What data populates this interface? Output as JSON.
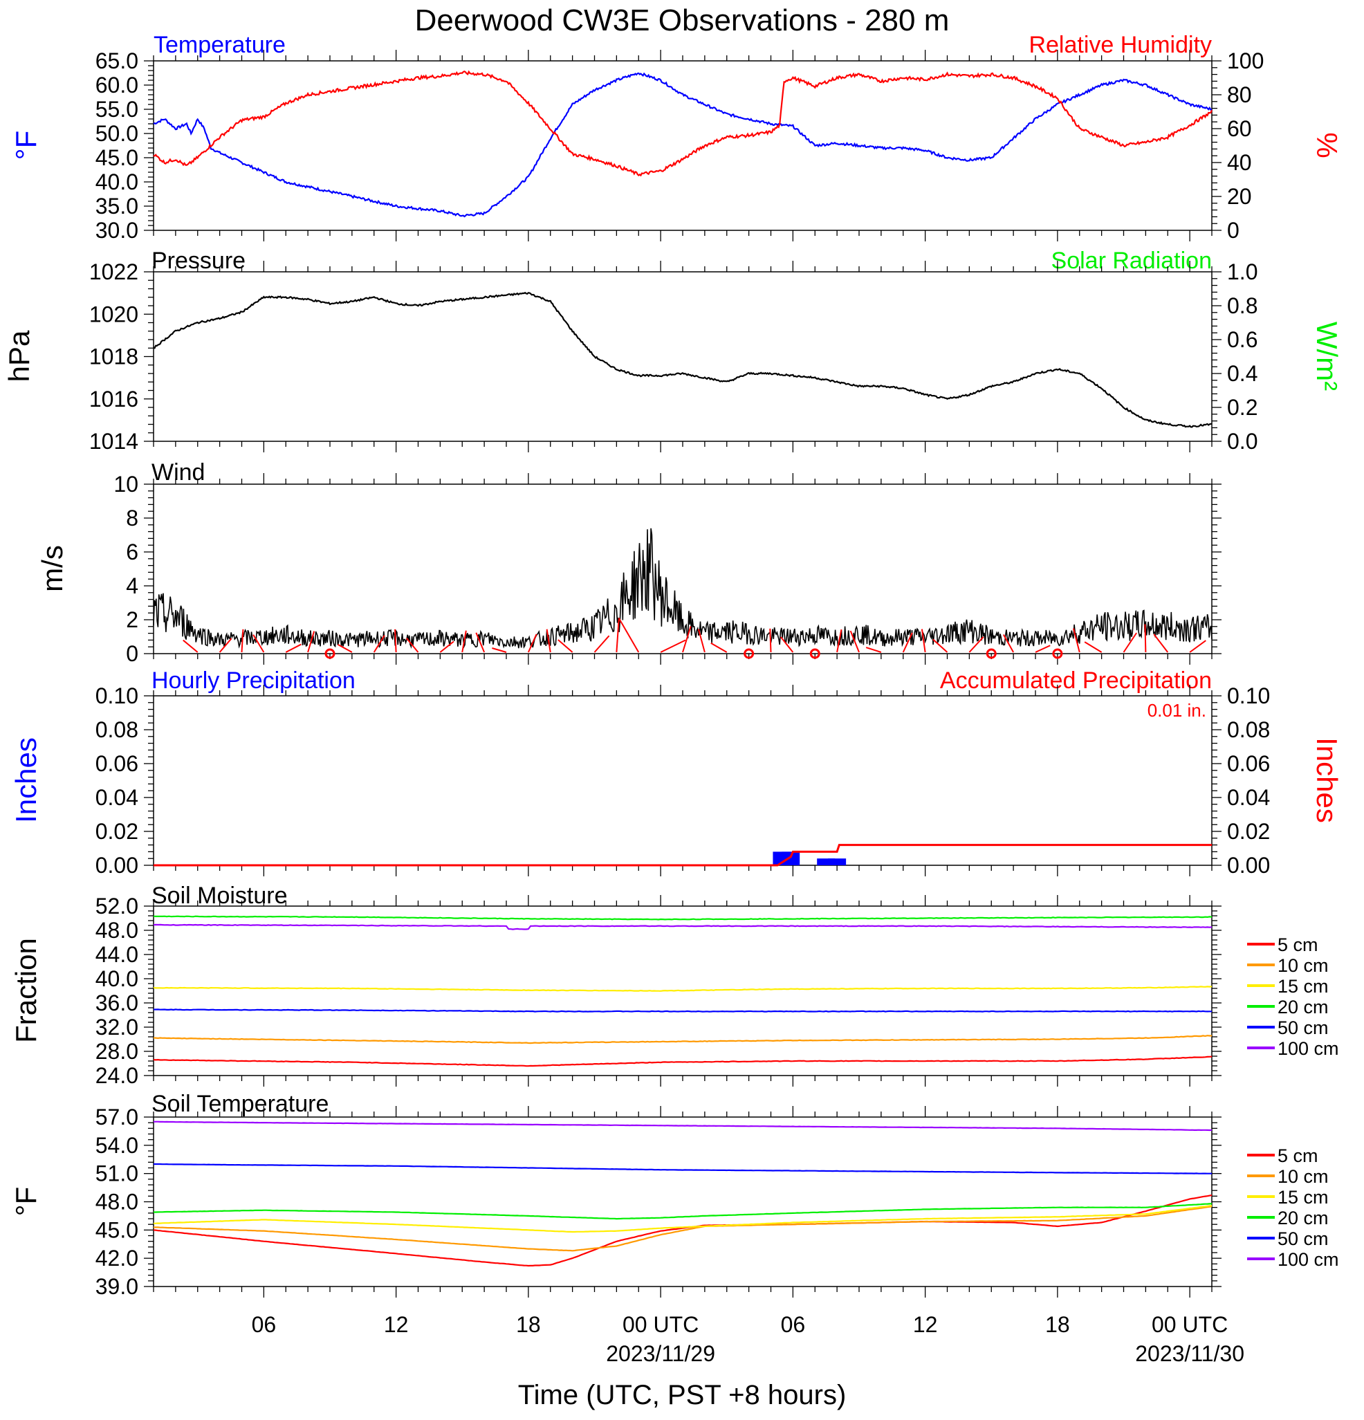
{
  "title": "Deerwood CW3E Observations - 280 m",
  "xaxis": {
    "title": "Time (UTC, PST +8 hours)",
    "ticks": [
      {
        "h": 6,
        "label": "06",
        "sub": ""
      },
      {
        "h": 12,
        "label": "12",
        "sub": ""
      },
      {
        "h": 18,
        "label": "18",
        "sub": ""
      },
      {
        "h": 24,
        "label": "00 UTC",
        "sub": "2023/11/29"
      },
      {
        "h": 30,
        "label": "06",
        "sub": ""
      },
      {
        "h": 36,
        "label": "12",
        "sub": ""
      },
      {
        "h": 42,
        "label": "18",
        "sub": ""
      },
      {
        "h": 48,
        "label": "00 UTC",
        "sub": "2023/11/30"
      }
    ],
    "range_hours": [
      1,
      49
    ]
  },
  "colors": {
    "temperature": "#0000ff",
    "humidity": "#ff0000",
    "solar": "#00ee00",
    "pressure": "#000000",
    "wind_barb": "#ff0000",
    "hourly_precip": "#0000ff",
    "accum_precip": "#ff0000"
  },
  "panels": {
    "temp_rh": {
      "left_label": "Temperature",
      "right_label": "Relative Humidity",
      "left_unit": "°F",
      "right_unit": "%",
      "left_ticks": [
        "65.0",
        "60.0",
        "55.0",
        "50.0",
        "45.0",
        "40.0",
        "35.0",
        "30.0"
      ],
      "right_ticks": [
        "100",
        "80",
        "60",
        "40",
        "20",
        "0"
      ]
    },
    "pressure": {
      "left_label": "Pressure",
      "right_label": "Solar Radiation",
      "left_unit": "hPa",
      "right_unit": "W/m²",
      "left_ticks": [
        "1022",
        "1020",
        "1018",
        "1016",
        "1014"
      ],
      "right_ticks": [
        "1.0",
        "0.8",
        "0.6",
        "0.4",
        "0.2",
        "0.0"
      ]
    },
    "wind": {
      "left_label": "Wind",
      "left_unit": "m/s",
      "left_ticks": [
        "10",
        "8",
        "6",
        "4",
        "2",
        "0"
      ]
    },
    "precip": {
      "left_label": "Hourly Precipitation",
      "right_label": "Accumulated Precipitation",
      "total_note": "0.01 in.",
      "left_unit": "Inches",
      "right_unit": "Inches",
      "left_ticks": [
        "0.10",
        "0.08",
        "0.06",
        "0.04",
        "0.02",
        "0.00"
      ],
      "right_ticks": [
        "0.10",
        "0.08",
        "0.06",
        "0.04",
        "0.02",
        "0.00"
      ]
    },
    "soil_moisture": {
      "left_label": "Soil Moisture",
      "left_unit": "Fraction",
      "left_ticks": [
        "52.0",
        "48.0",
        "44.0",
        "40.0",
        "36.0",
        "32.0",
        "28.0",
        "24.0"
      ],
      "legend": [
        {
          "label": "5 cm",
          "color": "#ff0000"
        },
        {
          "label": "10 cm",
          "color": "#ff9900"
        },
        {
          "label": "15 cm",
          "color": "#ffee00"
        },
        {
          "label": "20 cm",
          "color": "#00ee00"
        },
        {
          "label": "50 cm",
          "color": "#0000ff"
        },
        {
          "label": "100 cm",
          "color": "#9900ff"
        }
      ]
    },
    "soil_temp": {
      "left_label": "Soil Temperature",
      "left_unit": "°F",
      "left_ticks": [
        "57.0",
        "54.0",
        "51.0",
        "48.0",
        "45.0",
        "42.0",
        "39.0"
      ],
      "legend": [
        {
          "label": "5 cm",
          "color": "#ff0000"
        },
        {
          "label": "10 cm",
          "color": "#ff9900"
        },
        {
          "label": "15 cm",
          "color": "#ffee00"
        },
        {
          "label": "20 cm",
          "color": "#00ee00"
        },
        {
          "label": "50 cm",
          "color": "#0000ff"
        },
        {
          "label": "100 cm",
          "color": "#9900ff"
        }
      ]
    }
  },
  "chart_data": [
    {
      "type": "line",
      "title": "Temperature / Relative Humidity",
      "ylim": [
        30,
        65
      ],
      "y2lim": [
        0,
        100
      ],
      "series": [
        {
          "name": "Temperature",
          "axis": "left",
          "x": [
            1,
            1.5,
            2,
            2.5,
            2.7,
            3,
            3.3,
            3.6,
            4,
            5,
            6,
            7,
            8,
            9,
            10,
            11,
            12,
            13,
            14,
            15,
            16,
            17,
            18,
            19,
            20,
            21,
            22,
            23,
            24,
            25,
            26,
            27,
            28,
            29,
            30,
            31,
            32,
            33,
            34,
            35,
            36,
            37,
            38,
            39,
            40,
            41,
            42,
            43,
            44,
            45,
            46,
            47,
            48,
            49
          ],
          "y": [
            52,
            53,
            51,
            52,
            50,
            53,
            51,
            47,
            46,
            44,
            42,
            40,
            39,
            38,
            37,
            36,
            35,
            34.5,
            34,
            33,
            33.5,
            37,
            41,
            49,
            56,
            59,
            61,
            62.5,
            61,
            58,
            56,
            54,
            53,
            52,
            51.5,
            47.5,
            48,
            47.5,
            47,
            47,
            46.5,
            45,
            44.5,
            45,
            49,
            53,
            56,
            58,
            60,
            61,
            60,
            58,
            56,
            55
          ]
        },
        {
          "name": "Relative Humidity",
          "axis": "right",
          "x": [
            1,
            1.5,
            2,
            2.5,
            3,
            4,
            5,
            6,
            7,
            8,
            9,
            10,
            11,
            12,
            13,
            14,
            15,
            16,
            17,
            18,
            19,
            20,
            21,
            22,
            23,
            24,
            25,
            26,
            27,
            28,
            29,
            29.4,
            29.6,
            30,
            31,
            32,
            33,
            34,
            35,
            36,
            37,
            38,
            39,
            40,
            41,
            42,
            43,
            44,
            45,
            46,
            47,
            48,
            49
          ],
          "y": [
            45,
            40,
            42,
            38,
            43,
            55,
            65,
            67,
            75,
            80,
            82,
            84,
            86,
            88,
            90,
            91,
            93,
            92,
            88,
            75,
            60,
            45,
            42,
            38,
            33,
            35,
            42,
            50,
            55,
            56,
            58,
            62,
            88,
            90,
            85,
            90,
            92,
            88,
            90,
            89,
            92,
            91,
            92,
            90,
            85,
            78,
            60,
            55,
            50,
            52,
            55,
            62,
            70
          ]
        }
      ]
    },
    {
      "type": "line",
      "title": "Pressure",
      "ylim": [
        1014,
        1022
      ],
      "series": [
        {
          "name": "Pressure",
          "x": [
            1,
            2,
            3,
            4,
            5,
            6,
            7,
            8,
            9,
            10,
            11,
            12,
            13,
            14,
            15,
            16,
            17,
            18,
            19,
            20,
            21,
            22,
            23,
            24,
            25,
            26,
            27,
            28,
            29,
            30,
            31,
            32,
            33,
            34,
            35,
            36,
            37,
            38,
            39,
            40,
            41,
            42,
            43,
            44,
            45,
            46,
            47,
            48,
            49
          ],
          "y": [
            1018.4,
            1019.2,
            1019.6,
            1019.8,
            1020.1,
            1020.8,
            1020.8,
            1020.7,
            1020.5,
            1020.6,
            1020.8,
            1020.5,
            1020.4,
            1020.6,
            1020.7,
            1020.8,
            1020.9,
            1021,
            1020.6,
            1019.2,
            1018.0,
            1017.4,
            1017.1,
            1017.1,
            1017.2,
            1017.0,
            1016.8,
            1017.2,
            1017.2,
            1017.1,
            1017.0,
            1016.8,
            1016.6,
            1016.6,
            1016.5,
            1016.2,
            1016.0,
            1016.2,
            1016.6,
            1016.8,
            1017.2,
            1017.4,
            1017.2,
            1016.5,
            1015.6,
            1015.0,
            1014.8,
            1014.7,
            1014.8
          ]
        }
      ]
    },
    {
      "type": "line",
      "title": "Wind",
      "ylim": [
        0,
        10
      ],
      "series": [
        {
          "name": "Wind",
          "x": [
            1,
            2,
            3,
            4,
            5,
            6,
            7,
            8,
            9,
            10,
            11,
            12,
            13,
            14,
            15,
            16,
            17,
            18,
            19,
            20,
            21,
            22,
            23,
            23.5,
            24,
            25,
            26,
            27,
            28,
            29,
            30,
            31,
            32,
            33,
            34,
            35,
            36,
            37,
            38,
            39,
            40,
            41,
            42,
            43,
            44,
            45,
            46,
            47,
            48,
            49
          ],
          "y": [
            2.4,
            2.2,
            1.2,
            0.8,
            0.9,
            1.0,
            1.1,
            0.9,
            0.9,
            0.8,
            0.9,
            0.9,
            0.8,
            0.9,
            0.8,
            0.9,
            0.7,
            0.7,
            1.0,
            1.2,
            1.6,
            2.5,
            4.5,
            5.0,
            3.5,
            1.8,
            1.2,
            1.3,
            1.2,
            1.0,
            1.0,
            1.1,
            1.0,
            1.2,
            0.9,
            1.0,
            1.0,
            1.2,
            1.4,
            1.0,
            0.9,
            0.9,
            0.9,
            1.3,
            1.6,
            1.6,
            1.7,
            1.6,
            1.5,
            1.5
          ]
        }
      ]
    },
    {
      "type": "bar",
      "title": "Hourly Precipitation",
      "ylim": [
        0,
        0.1
      ],
      "x": [
        29.5,
        29.9,
        31.5,
        32.0
      ],
      "values": [
        0.008,
        0.008,
        0.004,
        0.004
      ]
    },
    {
      "type": "line",
      "title": "Accumulated Precipitation",
      "ylim": [
        0,
        0.1
      ],
      "x": [
        1,
        29.3,
        29.9,
        30.0,
        32.0,
        32.1,
        49
      ],
      "values": [
        0,
        0,
        0.005,
        0.008,
        0.008,
        0.012,
        0.012
      ]
    },
    {
      "type": "line",
      "title": "Soil Moisture",
      "ylim": [
        24,
        52
      ],
      "series": [
        {
          "name": "5 cm",
          "x": [
            1,
            10,
            18,
            24,
            30,
            36,
            42,
            46,
            49
          ],
          "y": [
            26.6,
            26.2,
            25.6,
            26.2,
            26.4,
            26.4,
            26.4,
            26.7,
            27.1
          ]
        },
        {
          "name": "10 cm",
          "x": [
            1,
            10,
            18,
            24,
            30,
            36,
            42,
            46,
            49
          ],
          "y": [
            30.2,
            29.8,
            29.4,
            29.6,
            29.8,
            29.9,
            30.0,
            30.2,
            30.6
          ]
        },
        {
          "name": "15 cm",
          "x": [
            1,
            10,
            18,
            24,
            30,
            36,
            42,
            46,
            49
          ],
          "y": [
            38.5,
            38.4,
            38.1,
            38.0,
            38.3,
            38.4,
            38.4,
            38.5,
            38.7
          ]
        },
        {
          "name": "20 cm",
          "x": [
            1,
            10,
            18,
            24,
            30,
            36,
            42,
            49
          ],
          "y": [
            50.3,
            50.2,
            49.9,
            49.8,
            49.9,
            50.0,
            50.1,
            50.2
          ]
        },
        {
          "name": "50 cm",
          "x": [
            1,
            10,
            18,
            24,
            30,
            36,
            42,
            49
          ],
          "y": [
            34.9,
            34.8,
            34.6,
            34.6,
            34.6,
            34.6,
            34.6,
            34.6
          ]
        },
        {
          "name": "100 cm",
          "x": [
            1,
            10,
            17,
            17.1,
            18,
            18.1,
            24,
            30,
            36,
            42,
            49
          ],
          "y": [
            48.9,
            48.8,
            48.7,
            48.2,
            48.2,
            48.7,
            48.7,
            48.7,
            48.7,
            48.6,
            48.5
          ]
        }
      ]
    },
    {
      "type": "line",
      "title": "Soil Temperature",
      "ylim": [
        39,
        57
      ],
      "series": [
        {
          "name": "5 cm",
          "x": [
            1,
            6,
            12,
            16,
            18,
            19,
            20,
            22,
            24,
            26,
            30,
            36,
            40,
            42,
            44,
            46,
            48,
            49
          ],
          "y": [
            45.0,
            43.8,
            42.5,
            41.6,
            41.2,
            41.3,
            42.0,
            43.8,
            44.9,
            45.5,
            45.6,
            45.9,
            45.8,
            45.4,
            45.8,
            47.0,
            48.3,
            48.7
          ]
        },
        {
          "name": "10 cm",
          "x": [
            1,
            6,
            12,
            18,
            20,
            22,
            24,
            26,
            30,
            36,
            42,
            46,
            49
          ],
          "y": [
            45.3,
            44.9,
            44.0,
            43.0,
            42.8,
            43.3,
            44.5,
            45.4,
            45.6,
            45.9,
            46.0,
            46.5,
            47.5
          ]
        },
        {
          "name": "15 cm",
          "x": [
            1,
            6,
            12,
            18,
            20,
            22,
            24,
            26,
            30,
            36,
            42,
            46,
            49
          ],
          "y": [
            45.7,
            46.1,
            45.6,
            45.0,
            44.8,
            44.9,
            45.2,
            45.4,
            45.8,
            46.2,
            46.4,
            46.7,
            47.6
          ]
        },
        {
          "name": "20 cm",
          "x": [
            1,
            6,
            12,
            18,
            22,
            24,
            26,
            30,
            36,
            42,
            46,
            49
          ],
          "y": [
            46.9,
            47.1,
            46.9,
            46.5,
            46.2,
            46.3,
            46.5,
            46.8,
            47.2,
            47.4,
            47.4,
            47.8
          ]
        },
        {
          "name": "50 cm",
          "x": [
            1,
            6,
            12,
            18,
            24,
            30,
            36,
            42,
            49
          ],
          "y": [
            52.0,
            51.9,
            51.8,
            51.6,
            51.4,
            51.3,
            51.2,
            51.1,
            51.0
          ]
        },
        {
          "name": "100 cm",
          "x": [
            1,
            6,
            12,
            18,
            24,
            30,
            36,
            42,
            49
          ],
          "y": [
            56.5,
            56.4,
            56.3,
            56.2,
            56.1,
            56.0,
            55.9,
            55.8,
            55.6
          ]
        }
      ]
    }
  ]
}
